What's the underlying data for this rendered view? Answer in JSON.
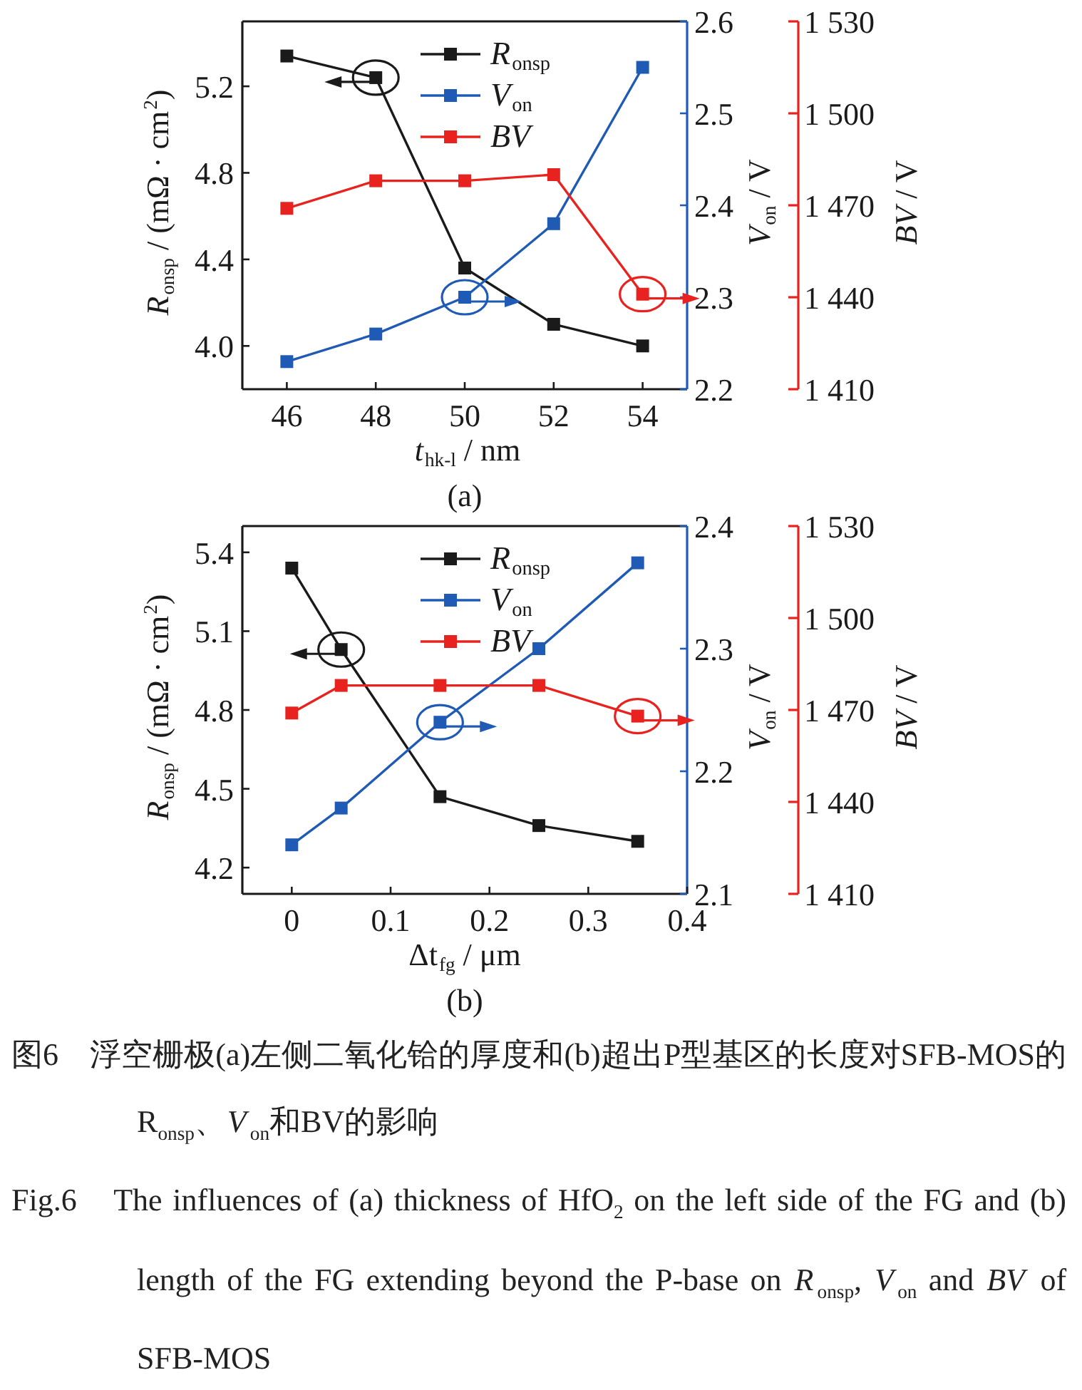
{
  "chart_data": [
    {
      "type": "line",
      "xlabel": "*t*$_{hk-l}$ / nm",
      "ylabel": "*R*$_{onsp}$ / (mΩ · cm$^{2}$)",
      "y2label": "*V*$_{on}$ / V",
      "y3label": "*BV* / V",
      "x": [
        46,
        48,
        50,
        52,
        54
      ],
      "xlim": [
        45,
        55
      ],
      "xticks": [
        46,
        48,
        50,
        52,
        54
      ],
      "ylim": [
        3.8,
        5.5
      ],
      "yticks": [
        {
          "value": 4.0,
          "label": "4.0"
        },
        4.4,
        4.8,
        5.2
      ],
      "y2lim": [
        2.2,
        2.6
      ],
      "y2ticks": [
        2.2,
        2.3,
        2.4,
        2.5,
        2.6
      ],
      "y3lim": [
        1410,
        1530
      ],
      "y3ticks": [
        {
          "value": 1410,
          "label": "1 410"
        },
        {
          "value": 1440,
          "label": "1 440"
        },
        {
          "value": 1470,
          "label": "1 470"
        },
        {
          "value": 1500,
          "label": "1 500"
        },
        {
          "value": 1530,
          "label": "1 530"
        }
      ],
      "series": [
        {
          "name": "*R*$_{onsp}$",
          "color": "#1a1a1a",
          "values": [
            5.34,
            5.24,
            4.36,
            4.1,
            4.0
          ]
        },
        {
          "name": "*V*$_{on}$",
          "color": "#1f5bb5",
          "axis": "y2",
          "values": [
            2.23,
            2.26,
            2.3,
            2.38,
            2.55
          ]
        },
        {
          "name": "*BV*",
          "color": "#e8231f",
          "axis": "y3",
          "values": [
            1469,
            1478,
            1478,
            1480,
            1441
          ]
        }
      ],
      "marker": "square",
      "legend": "top",
      "grid": false,
      "annotations": [
        "(a)"
      ]
    },
    {
      "type": "line",
      "xlabel": "Δt$_{fg}$ / μm",
      "ylabel": "*R*$_{onsp}$ / (mΩ · cm$^{2}$)",
      "y2label": "*V*$_{on}$ / V",
      "y3label": "*BV* / V",
      "x": [
        0,
        0.05,
        0.15,
        0.25,
        0.35
      ],
      "xlim": [
        -0.05,
        0.4
      ],
      "xticks": [
        0,
        0.1,
        0.2,
        0.3,
        0.4
      ],
      "ylim": [
        4.1,
        5.5
      ],
      "yticks": [
        4.2,
        4.5,
        4.8,
        5.1,
        5.4
      ],
      "y2lim": [
        2.1,
        2.4
      ],
      "y2ticks": [
        2.1,
        2.2,
        2.3,
        2.4
      ],
      "y3lim": [
        1410,
        1530
      ],
      "y3ticks": [
        {
          "value": 1410,
          "label": "1 410"
        },
        {
          "value": 1440,
          "label": "1 440"
        },
        {
          "value": 1470,
          "label": "1 470"
        },
        {
          "value": 1500,
          "label": "1 500"
        },
        {
          "value": 1530,
          "label": "1 530"
        }
      ],
      "series": [
        {
          "name": "*R*$_{onsp}$",
          "color": "#1a1a1a",
          "values": [
            5.34,
            5.03,
            4.47,
            4.36,
            4.3
          ]
        },
        {
          "name": "*V*$_{on}$",
          "color": "#1f5bb5",
          "axis": "y2",
          "values": [
            2.14,
            2.17,
            2.24,
            2.3,
            2.37
          ]
        },
        {
          "name": "*BV*",
          "color": "#e8231f",
          "axis": "y3",
          "values": [
            1469,
            1478,
            1478,
            1478,
            1468
          ]
        }
      ],
      "marker": "square",
      "legend": "top",
      "grid": false,
      "annotations": [
        "(b)",
        "图6　浮空栅极(a)左侧二氧化铪的厚度和(b)超出P型基区的长度对SFB-MOS的R$_{onsp}$、*V*$_{on}$和BV的影响",
        "Fig.6　The influences of (a) thickness of HfO$_{2}$ on the left side of the FG and (b) length of the FG extending beyond the P-base on *R*$_{onsp}$, *V*$_{on}$ and *BV* of SFB-MOS"
      ]
    }
  ]
}
